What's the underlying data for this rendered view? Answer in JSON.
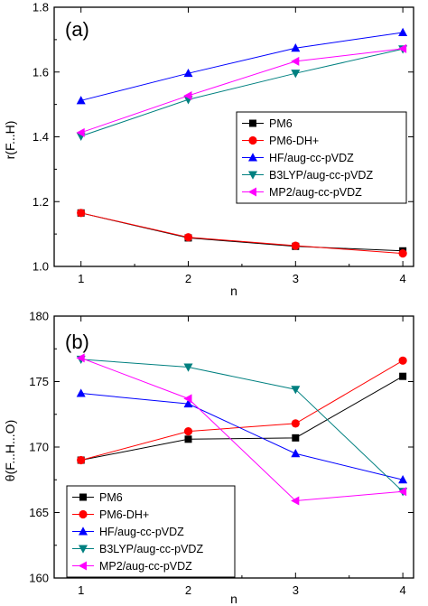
{
  "chart_data": [
    {
      "panel_label": "(a)",
      "type": "line",
      "xlabel": "n",
      "ylabel": "r(F...H)",
      "xlim": [
        0.75,
        4.1
      ],
      "ylim": [
        1.0,
        1.8
      ],
      "xticks": [
        1,
        2,
        3,
        4
      ],
      "yticks": [
        1.0,
        1.2,
        1.4,
        1.6,
        1.8
      ],
      "ytick_labels": [
        "1.0",
        "1.2",
        "1.4",
        "1.6",
        "1.8"
      ],
      "legend_position": "middle-right",
      "x": [
        1,
        2,
        3,
        4
      ],
      "series": [
        {
          "name": "PM6",
          "color": "#000000",
          "marker": "square",
          "values": [
            1.165,
            1.088,
            1.062,
            1.048
          ]
        },
        {
          "name": "PM6-DH+",
          "color": "#ff0000",
          "marker": "circle",
          "values": [
            1.165,
            1.09,
            1.064,
            1.04
          ]
        },
        {
          "name": "HF/aug-cc-pVDZ",
          "color": "#0000ff",
          "marker": "triangle-up",
          "values": [
            1.512,
            1.596,
            1.674,
            1.722
          ]
        },
        {
          "name": "B3LYP/aug-cc-pVDZ",
          "color": "#008080",
          "marker": "triangle-down",
          "values": [
            1.402,
            1.515,
            1.596,
            1.671
          ]
        },
        {
          "name": "MP2/aug-cc-pVDZ",
          "color": "#ff00ff",
          "marker": "triangle-left",
          "values": [
            1.413,
            1.527,
            1.633,
            1.672
          ]
        }
      ]
    },
    {
      "panel_label": "(b)",
      "type": "line",
      "xlabel": "n",
      "ylabel": "θ(F...H...O)",
      "xlim": [
        0.75,
        4.1
      ],
      "ylim": [
        160,
        180
      ],
      "xticks": [
        1,
        2,
        3,
        4
      ],
      "yticks": [
        160,
        165,
        170,
        175,
        180
      ],
      "ytick_labels": [
        "160",
        "165",
        "170",
        "175",
        "180"
      ],
      "legend_position": "bottom-left",
      "x": [
        1,
        2,
        3,
        4
      ],
      "series": [
        {
          "name": "PM6",
          "color": "#000000",
          "marker": "square",
          "values": [
            169.0,
            170.6,
            170.7,
            175.4
          ]
        },
        {
          "name": "PM6-DH+",
          "color": "#ff0000",
          "marker": "circle",
          "values": [
            169.0,
            171.2,
            171.8,
            176.6
          ]
        },
        {
          "name": "HF/aug-cc-pVDZ",
          "color": "#0000ff",
          "marker": "triangle-up",
          "values": [
            174.1,
            173.3,
            169.5,
            167.5
          ]
        },
        {
          "name": "B3LYP/aug-cc-pVDZ",
          "color": "#008080",
          "marker": "triangle-down",
          "values": [
            176.7,
            176.1,
            174.4,
            166.6
          ]
        },
        {
          "name": "MP2/aug-cc-pVDZ",
          "color": "#ff00ff",
          "marker": "triangle-left",
          "values": [
            176.8,
            173.7,
            165.9,
            166.6
          ]
        }
      ]
    }
  ]
}
